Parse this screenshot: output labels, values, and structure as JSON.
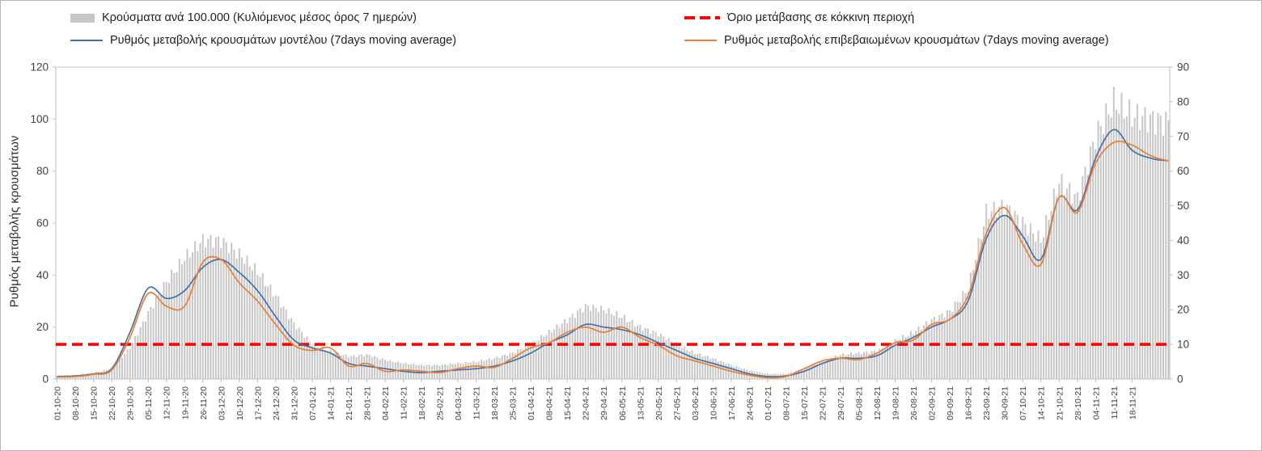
{
  "legend": {
    "cases": "Κρούσματα ανά 100.000 (Κυλιόμενος μέσος όρος 7 ημερών)",
    "threshold": "Όριο μετάβασης σε κόκκινη περιοχή",
    "model": "Ρυθμός μεταβολής κρουσμάτων μοντέλου (7days moving average)",
    "confirmed": "Ρυθμός μεταβολής επιβεβαιωμένων κρουσμάτων (7days moving average)"
  },
  "colors": {
    "bars": "#c6c6c6",
    "threshold": "#fe0000",
    "model": "#4472a8",
    "confirmed": "#ed7d31",
    "axis_text": "#404040",
    "frame": "#bfbfbf"
  },
  "chart_data": {
    "type": "bar",
    "title": "",
    "ylabel_left": "Ρυθμός μεταβολής κρουσμάτων",
    "legend_position": "top",
    "grid": false,
    "left_axis": {
      "min": 0,
      "max": 120,
      "step": 20
    },
    "right_axis": {
      "min": 0,
      "max": 90,
      "step": 10
    },
    "threshold": {
      "value": 10,
      "axis": "right",
      "style": "dashed"
    },
    "categories": [
      "01-10-20",
      "08-10-20",
      "15-10-20",
      "22-10-20",
      "29-10-20",
      "05-11-20",
      "12-11-20",
      "19-11-20",
      "26-11-20",
      "03-12-20",
      "10-12-20",
      "17-12-20",
      "24-12-20",
      "31-12-20",
      "07-01-21",
      "14-01-21",
      "21-01-21",
      "28-01-21",
      "04-02-21",
      "11-02-21",
      "18-02-21",
      "25-02-21",
      "04-03-21",
      "11-03-21",
      "18-03-21",
      "25-03-21",
      "01-04-21",
      "08-04-21",
      "15-04-21",
      "22-04-21",
      "29-04-21",
      "06-05-21",
      "13-05-21",
      "20-05-21",
      "27-05-21",
      "03-06-21",
      "10-06-21",
      "17-06-21",
      "24-06-21",
      "01-07-21",
      "08-07-21",
      "15-07-21",
      "22-07-21",
      "29-07-21",
      "05-08-21",
      "12-08-21",
      "19-08-21",
      "26-08-21",
      "02-09-21",
      "09-09-21",
      "16-09-21",
      "23-09-21",
      "30-09-21",
      "07-10-21",
      "14-10-21",
      "21-10-21",
      "28-10-21",
      "04-11-21",
      "11-11-21",
      "18-11-21",
      "",
      ""
    ],
    "series": [
      {
        "name": "Κρούσματα ανά 100.000 (Κυλιόμενος μέσος όρος 7 ημερών)",
        "type": "bar",
        "axis": "right",
        "values": [
          1,
          1.2,
          1.8,
          3,
          9,
          19,
          28,
          35,
          40,
          40,
          36,
          31,
          24,
          16,
          10,
          8,
          6.5,
          7,
          5.5,
          4.5,
          4,
          4,
          4.5,
          5,
          6,
          7.5,
          10,
          13.5,
          17,
          21,
          20,
          18,
          15,
          13,
          10,
          7.5,
          6,
          4,
          2.5,
          1.5,
          1.5,
          3,
          5,
          7,
          7.5,
          8,
          11,
          13.5,
          17,
          19.5,
          26,
          48,
          50,
          45,
          40,
          57,
          52,
          70,
          80,
          76,
          75,
          74
        ]
      },
      {
        "name": "Ρυθμός μεταβολής κρουσμάτων μοντέλου (7days moving average)",
        "type": "line",
        "axis": "left",
        "values": [
          1,
          1.2,
          2,
          4,
          18,
          35,
          31,
          34,
          43,
          46,
          41,
          34,
          24,
          15,
          12,
          10,
          6,
          5,
          4,
          3,
          2.5,
          3,
          3.5,
          4,
          5,
          7,
          10,
          14,
          17,
          21,
          20,
          19,
          17,
          14,
          11,
          8,
          6,
          4,
          2,
          1,
          1.2,
          3,
          6,
          8,
          8,
          9,
          13,
          16,
          20,
          23,
          30,
          54,
          63,
          55,
          46,
          70,
          65,
          85,
          96,
          88,
          85,
          84
        ]
      },
      {
        "name": "Ρυθμός μεταβολής επιβεβαιωμένων κρουσμάτων (7days moving average)",
        "type": "line",
        "axis": "left",
        "values": [
          0.8,
          1,
          1.8,
          3.5,
          16,
          33,
          28,
          28,
          45,
          46,
          37,
          30,
          21,
          13,
          11,
          12,
          5,
          6,
          3,
          3.5,
          3,
          2.5,
          4,
          5,
          4.5,
          8,
          12,
          14,
          18,
          20,
          18,
          20,
          16,
          13,
          9,
          7,
          5,
          3,
          1.5,
          0.5,
          1,
          4,
          7,
          8,
          7.5,
          10,
          14,
          15,
          21,
          23,
          32,
          56,
          66,
          52,
          44,
          70,
          64,
          83,
          91,
          90,
          86,
          84
        ]
      }
    ]
  }
}
